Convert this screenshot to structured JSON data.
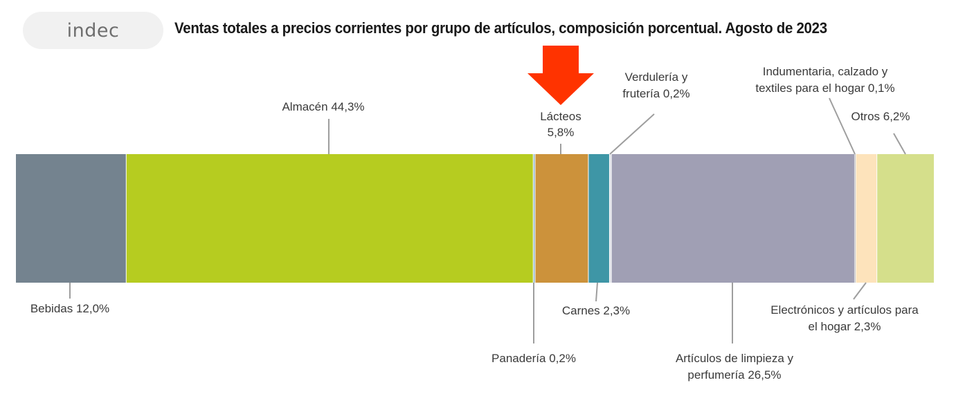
{
  "logo": {
    "text": "indec"
  },
  "title": "Ventas totales a precios corrientes por grupo de artículos, composición porcentual. Agosto de 2023",
  "highlight": {
    "target": "Lácteos",
    "color": "#ff3300"
  },
  "chart_data": {
    "type": "bar",
    "orientation": "horizontal-stacked",
    "unit": "%",
    "series": [
      {
        "name": "Bebidas",
        "value": 12.0,
        "label": [
          "Bebidas 12,0%"
        ],
        "color": "#74838f"
      },
      {
        "name": "Almacén",
        "value": 44.3,
        "label": [
          "Almacén 44,3%"
        ],
        "color": "#b6cc20"
      },
      {
        "name": "Panadería",
        "value": 0.2,
        "label": [
          "Panadería 0,2%"
        ],
        "color": "#8fb3c9"
      },
      {
        "name": "Lácteos",
        "value": 5.8,
        "label": [
          "Lácteos",
          "5,8%"
        ],
        "color": "#cc923b"
      },
      {
        "name": "Carnes",
        "value": 2.3,
        "label": [
          "Carnes 2,3%"
        ],
        "color": "#3e96a6"
      },
      {
        "name": "Verdulería y frutería",
        "value": 0.2,
        "label": [
          "Verdulería y",
          "frutería 0,2%"
        ],
        "color": "#d9dde4"
      },
      {
        "name": "Artículos de limpieza y perfumería",
        "value": 26.5,
        "label": [
          "Artículos de limpieza y",
          "perfumería 26,5%"
        ],
        "color": "#a09fb4"
      },
      {
        "name": "Indumentaria, calzado y textiles para el hogar",
        "value": 0.1,
        "label": [
          "Indumentaria, calzado y",
          "textiles para el hogar 0,1%"
        ],
        "color": "#4a4a4a"
      },
      {
        "name": "Electrónicos y artículos para el hogar",
        "value": 2.3,
        "label": [
          "Electrónicos y artículos para",
          "el hogar 2,3%"
        ],
        "color": "#fde3bb"
      },
      {
        "name": "Otros",
        "value": 6.2,
        "label": [
          "Otros 6,2%"
        ],
        "color": "#d5df8b"
      }
    ],
    "leader_color": "#9e9e9e"
  }
}
